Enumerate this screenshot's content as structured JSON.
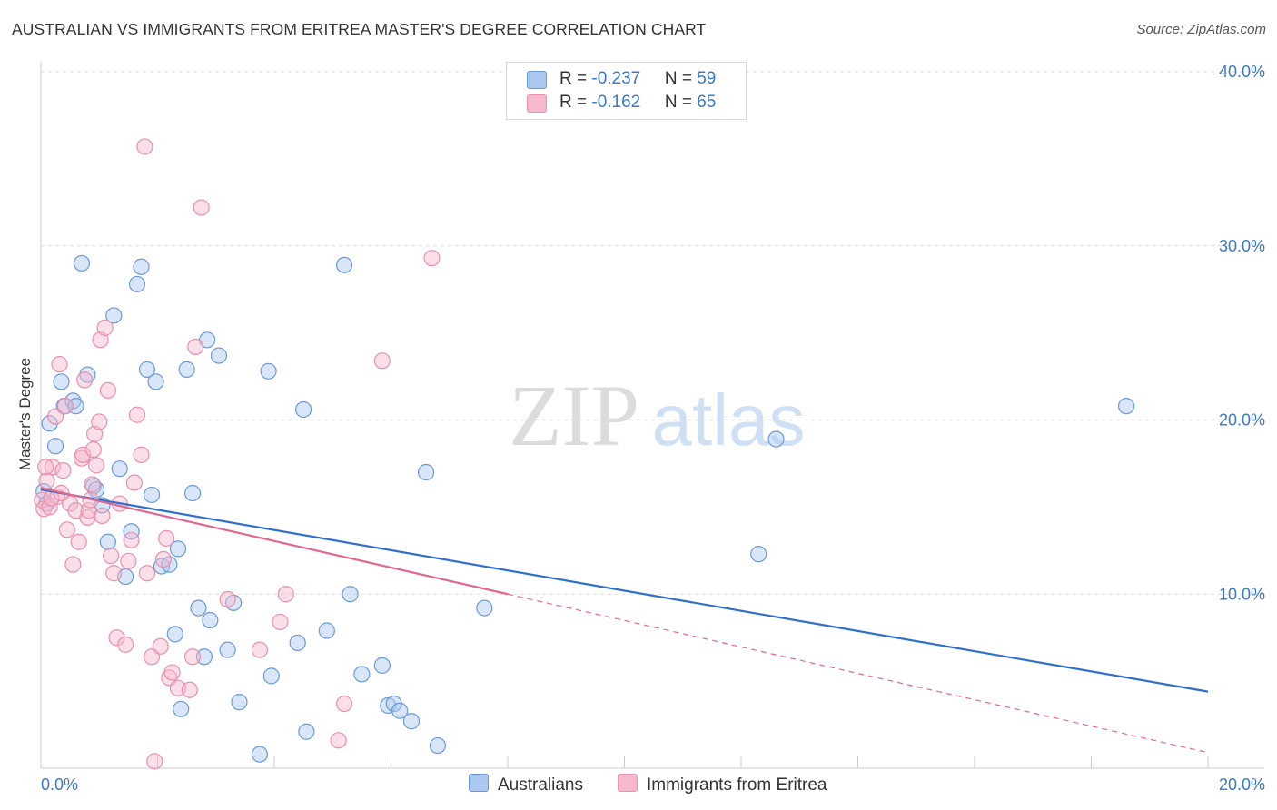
{
  "title": "AUSTRALIAN VS IMMIGRANTS FROM ERITREA MASTER'S DEGREE CORRELATION CHART",
  "source": "Source: ZipAtlas.com",
  "watermark": {
    "zip": "ZIP",
    "atlas": "atlas"
  },
  "colors": {
    "blue_fill": "#aac8f0",
    "blue_stroke": "#6a9ad8",
    "blue_line": "#2f6fcc",
    "pink_fill": "#f6b8cc",
    "pink_stroke": "#e890ac",
    "pink_line": "#e06890",
    "tick_text": "#3a78c8",
    "grid": "#dddddd"
  },
  "legend": {
    "rows": [
      {
        "r_label": "R = ",
        "r_value": "-0.237",
        "n_label": "N = ",
        "n_value": "59",
        "color": "#aac8f0"
      },
      {
        "r_label": "R = ",
        "r_value": " -0.162",
        "n_label": "N = ",
        "n_value": "65",
        "color": "#f6b8cc"
      }
    ]
  },
  "bottom_legend": [
    {
      "label": "Australians",
      "color": "#aac8f0"
    },
    {
      "label": "Immigrants from Eritrea",
      "color": "#f6b8cc"
    }
  ],
  "chart_data": {
    "type": "scatter",
    "title": "AUSTRALIAN VS IMMIGRANTS FROM ERITREA MASTER'S DEGREE CORRELATION CHART",
    "xlabel": "",
    "ylabel": "Master's Degree",
    "xlim": [
      0,
      20
    ],
    "ylim": [
      0,
      40
    ],
    "x_ticks": [
      "0.0%",
      "20.0%"
    ],
    "y_ticks": [
      "10.0%",
      "20.0%",
      "30.0%",
      "40.0%"
    ],
    "grid": true,
    "legend_position": "top-center",
    "series": [
      {
        "name": "Australians",
        "color": "#aac8f0",
        "points": [
          [
            0.15,
            19.8
          ],
          [
            0.25,
            18.5
          ],
          [
            0.35,
            22.2
          ],
          [
            0.4,
            20.8
          ],
          [
            0.55,
            21.1
          ],
          [
            0.6,
            20.8
          ],
          [
            0.7,
            29.0
          ],
          [
            0.8,
            22.6
          ],
          [
            0.9,
            16.2
          ],
          [
            0.95,
            16.0
          ],
          [
            1.05,
            15.1
          ],
          [
            1.15,
            13.0
          ],
          [
            1.25,
            26.0
          ],
          [
            1.35,
            17.2
          ],
          [
            1.45,
            11.0
          ],
          [
            1.55,
            13.6
          ],
          [
            1.65,
            27.8
          ],
          [
            1.72,
            28.8
          ],
          [
            1.82,
            22.9
          ],
          [
            1.9,
            15.7
          ],
          [
            1.97,
            22.2
          ],
          [
            2.07,
            11.6
          ],
          [
            2.2,
            11.7
          ],
          [
            2.3,
            7.7
          ],
          [
            2.35,
            12.6
          ],
          [
            2.4,
            3.4
          ],
          [
            2.5,
            22.9
          ],
          [
            2.6,
            15.8
          ],
          [
            2.7,
            9.2
          ],
          [
            2.8,
            6.4
          ],
          [
            2.85,
            24.6
          ],
          [
            2.9,
            8.5
          ],
          [
            3.05,
            23.7
          ],
          [
            3.2,
            6.8
          ],
          [
            3.3,
            9.5
          ],
          [
            3.4,
            3.8
          ],
          [
            3.75,
            0.8
          ],
          [
            3.9,
            22.8
          ],
          [
            3.95,
            5.3
          ],
          [
            4.4,
            7.2
          ],
          [
            4.5,
            20.6
          ],
          [
            4.55,
            2.1
          ],
          [
            4.9,
            7.9
          ],
          [
            5.2,
            28.9
          ],
          [
            5.3,
            10.0
          ],
          [
            5.5,
            5.4
          ],
          [
            5.85,
            5.9
          ],
          [
            5.95,
            3.6
          ],
          [
            6.05,
            3.7
          ],
          [
            6.15,
            3.3
          ],
          [
            6.35,
            2.7
          ],
          [
            6.6,
            17.0
          ],
          [
            6.8,
            1.3
          ],
          [
            7.6,
            9.2
          ],
          [
            12.3,
            12.3
          ],
          [
            12.6,
            18.9
          ],
          [
            18.6,
            20.8
          ],
          [
            0.05,
            15.9
          ],
          [
            0.1,
            15.2
          ]
        ]
      },
      {
        "name": "Immigrants from Eritrea",
        "color": "#f6b8cc",
        "points": [
          [
            0.02,
            15.4
          ],
          [
            0.05,
            14.9
          ],
          [
            0.1,
            16.5
          ],
          [
            0.15,
            15.0
          ],
          [
            0.2,
            17.3
          ],
          [
            0.25,
            20.2
          ],
          [
            0.28,
            15.6
          ],
          [
            0.32,
            23.2
          ],
          [
            0.38,
            17.1
          ],
          [
            0.42,
            20.8
          ],
          [
            0.45,
            13.7
          ],
          [
            0.5,
            15.2
          ],
          [
            0.55,
            11.7
          ],
          [
            0.6,
            14.8
          ],
          [
            0.65,
            13.0
          ],
          [
            0.7,
            17.8
          ],
          [
            0.72,
            18.0
          ],
          [
            0.75,
            22.3
          ],
          [
            0.8,
            14.4
          ],
          [
            0.82,
            14.8
          ],
          [
            0.85,
            15.4
          ],
          [
            0.88,
            16.3
          ],
          [
            0.9,
            18.3
          ],
          [
            0.92,
            19.2
          ],
          [
            0.95,
            17.4
          ],
          [
            1.0,
            19.9
          ],
          [
            1.02,
            24.6
          ],
          [
            1.05,
            14.5
          ],
          [
            1.1,
            25.3
          ],
          [
            1.15,
            21.7
          ],
          [
            1.2,
            12.2
          ],
          [
            1.25,
            11.2
          ],
          [
            1.3,
            7.5
          ],
          [
            1.35,
            15.2
          ],
          [
            1.45,
            7.1
          ],
          [
            1.5,
            11.9
          ],
          [
            1.55,
            13.1
          ],
          [
            1.6,
            16.4
          ],
          [
            1.65,
            20.3
          ],
          [
            1.72,
            18.0
          ],
          [
            1.78,
            35.7
          ],
          [
            1.82,
            11.2
          ],
          [
            1.9,
            6.4
          ],
          [
            1.95,
            0.4
          ],
          [
            2.05,
            7.0
          ],
          [
            2.1,
            12.0
          ],
          [
            2.15,
            13.2
          ],
          [
            2.2,
            5.2
          ],
          [
            2.25,
            5.5
          ],
          [
            2.35,
            4.6
          ],
          [
            2.55,
            4.5
          ],
          [
            2.6,
            6.4
          ],
          [
            2.65,
            24.2
          ],
          [
            2.75,
            32.2
          ],
          [
            3.2,
            9.7
          ],
          [
            3.75,
            6.8
          ],
          [
            4.1,
            8.4
          ],
          [
            4.2,
            10.0
          ],
          [
            5.1,
            1.6
          ],
          [
            5.2,
            3.7
          ],
          [
            5.85,
            23.4
          ],
          [
            6.7,
            29.3
          ],
          [
            0.08,
            17.3
          ],
          [
            0.18,
            15.5
          ],
          [
            0.35,
            15.8
          ]
        ]
      }
    ],
    "trend_lines": [
      {
        "series": "Australians",
        "x": [
          0,
          20
        ],
        "y": [
          16.0,
          4.4
        ],
        "style": "solid"
      },
      {
        "series": "Immigrants from Eritrea",
        "x": [
          0,
          8
        ],
        "y": [
          16.1,
          10.0
        ],
        "style": "solid"
      },
      {
        "series": "Immigrants from Eritrea",
        "x": [
          8,
          20
        ],
        "y": [
          10.0,
          0.9
        ],
        "style": "dashed"
      }
    ]
  }
}
